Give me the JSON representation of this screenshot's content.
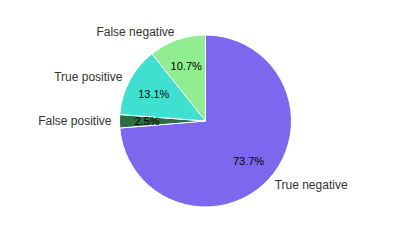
{
  "chart_data": {
    "type": "pie",
    "categories": [
      "True negative",
      "False positive",
      "True positive",
      "False negative"
    ],
    "values": [
      73.7,
      2.5,
      13.1,
      10.7
    ],
    "value_labels": [
      "73.7%",
      "2.5%",
      "13.1%",
      "10.7%"
    ],
    "colors": [
      "#7B68EE",
      "#2E6B47",
      "#40E0D0",
      "#90EE90"
    ],
    "data_labels": true
  }
}
